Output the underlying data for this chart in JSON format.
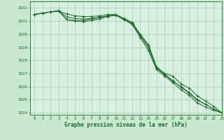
{
  "background_color": "#c8e8d0",
  "plot_bg_color": "#d8f0e0",
  "grid_color": "#a8cca8",
  "line_color": "#1a6e2a",
  "tick_color": "#1a6e2a",
  "title": "Graphe pression niveau de la mer (hPa)",
  "xlim": [
    -0.5,
    23
  ],
  "ylim": [
    1023.85,
    1032.5
  ],
  "yticks": [
    1024,
    1025,
    1026,
    1027,
    1028,
    1029,
    1030,
    1031,
    1032
  ],
  "xticks": [
    0,
    1,
    2,
    3,
    4,
    5,
    6,
    7,
    8,
    9,
    10,
    11,
    12,
    13,
    14,
    15,
    16,
    17,
    18,
    19,
    20,
    21,
    22,
    23
  ],
  "series": [
    [
      1031.5,
      1031.6,
      1031.7,
      1031.75,
      1031.55,
      1031.4,
      1031.35,
      1031.35,
      1031.4,
      1031.5,
      1031.5,
      1031.2,
      1030.9,
      1030.0,
      1029.2,
      1027.5,
      1027.0,
      1026.8,
      1026.2,
      1025.9,
      1025.3,
      1024.9,
      1024.5,
      1024.0
    ],
    [
      1031.5,
      1031.6,
      1031.7,
      1031.75,
      1031.1,
      1031.05,
      1031.05,
      1031.15,
      1031.25,
      1031.4,
      1031.45,
      1031.15,
      1030.85,
      1029.95,
      1029.1,
      1027.45,
      1026.95,
      1026.45,
      1025.95,
      1025.5,
      1024.95,
      1024.65,
      1024.3,
      1024.0
    ],
    [
      1031.5,
      1031.6,
      1031.7,
      1031.8,
      1031.1,
      1031.0,
      1030.95,
      1031.05,
      1031.15,
      1031.35,
      1031.45,
      1031.1,
      1030.75,
      1029.75,
      1028.75,
      1027.3,
      1026.8,
      1026.3,
      1025.75,
      1025.35,
      1024.75,
      1024.45,
      1024.2,
      1024.0
    ],
    [
      1031.5,
      1031.6,
      1031.7,
      1031.8,
      1031.3,
      1031.2,
      1031.15,
      1031.2,
      1031.3,
      1031.4,
      1031.5,
      1031.15,
      1030.8,
      1029.85,
      1028.95,
      1027.4,
      1026.9,
      1026.4,
      1026.0,
      1025.55,
      1025.0,
      1024.65,
      1024.3,
      1024.0
    ]
  ]
}
